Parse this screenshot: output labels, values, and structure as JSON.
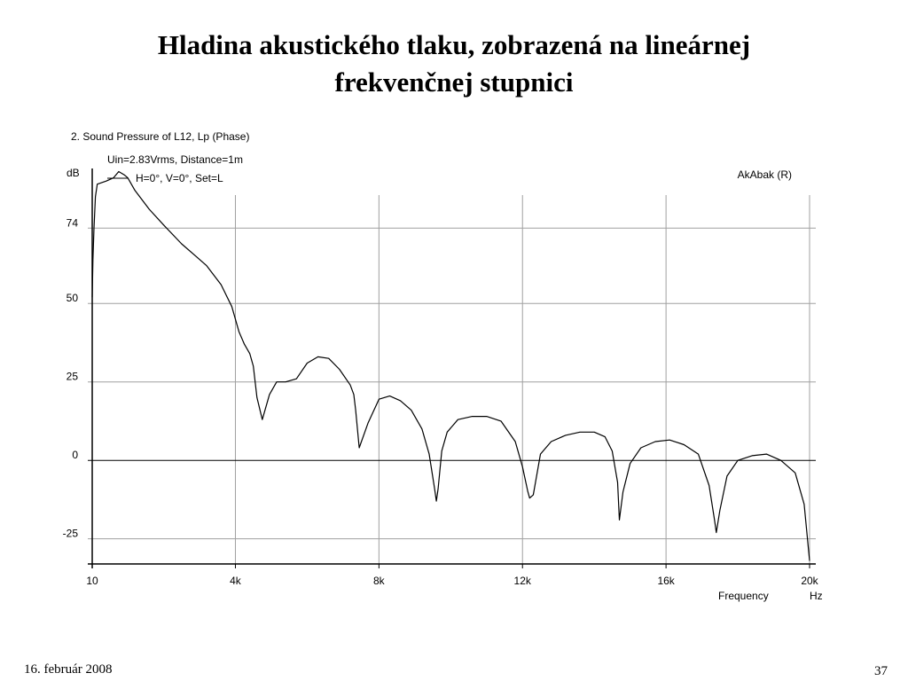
{
  "slide": {
    "title_line1": "Hladina akustického tlaku, zobrazená na lineárnej",
    "title_line2": "frekvenčnej stupnici",
    "footer_date": "16. február 2008",
    "page_number": "37"
  },
  "chart_data": {
    "type": "line",
    "title": "2. Sound Pressure of L12, Lp (Phase)",
    "conditions": "Uin=2.83Vrms, Distance=1m",
    "brand": "AkAbak (R)",
    "ylabel": "dB",
    "xlabel": "Frequency",
    "xunit": "Hz",
    "xlim": [
      10,
      20000
    ],
    "ylim": [
      -33,
      93
    ],
    "x_ticks": [
      {
        "value": 10,
        "label": "10"
      },
      {
        "value": 4000,
        "label": "4k"
      },
      {
        "value": 8000,
        "label": "8k"
      },
      {
        "value": 12000,
        "label": "12k"
      },
      {
        "value": 16000,
        "label": "16k"
      },
      {
        "value": 20000,
        "label": "20k"
      }
    ],
    "y_ticks": [
      {
        "value": 74,
        "label": "74"
      },
      {
        "value": 50,
        "label": "50"
      },
      {
        "value": 25,
        "label": "25"
      },
      {
        "value": 0,
        "label": "0"
      },
      {
        "value": -25,
        "label": "-25"
      }
    ],
    "grid": true,
    "colors": {
      "line": "#000000",
      "grid": "#a0a0a0"
    },
    "series": [
      {
        "name": "H=0°, V=0°, Set=L",
        "x": [
          10,
          30,
          60,
          100,
          150,
          400,
          600,
          750,
          900,
          1000,
          1200,
          1600,
          2000,
          2500,
          2900,
          3200,
          3600,
          3900,
          4100,
          4250,
          4400,
          4500,
          4600,
          4750,
          4950,
          5150,
          5400,
          5700,
          6000,
          6300,
          6600,
          6900,
          7200,
          7300,
          7350,
          7450,
          7700,
          8000,
          8300,
          8600,
          8900,
          9200,
          9400,
          9550,
          9600,
          9650,
          9750,
          9900,
          10200,
          10600,
          11000,
          11400,
          11800,
          12000,
          12150,
          12200,
          12300,
          12500,
          12800,
          13200,
          13600,
          14000,
          14300,
          14500,
          14650,
          14700,
          14800,
          15000,
          15300,
          15700,
          16100,
          16500,
          16900,
          17200,
          17350,
          17400,
          17500,
          17700,
          18000,
          18400,
          18800,
          19200,
          19600,
          19850,
          20000
        ],
        "y": [
          52,
          64,
          74,
          84,
          88,
          89,
          90,
          92,
          91,
          90,
          86,
          80,
          75,
          69,
          65,
          62,
          56,
          49,
          41,
          37,
          34,
          30,
          20,
          13,
          21,
          25,
          25,
          26,
          31,
          33,
          32.5,
          29,
          24,
          21,
          16,
          4,
          12,
          19.5,
          20.5,
          19,
          16,
          10,
          2,
          -9,
          -13,
          -9,
          3,
          9,
          13,
          14,
          14,
          12.5,
          6,
          -2,
          -10,
          -12,
          -11,
          2,
          6,
          8,
          9,
          9,
          7.5,
          3,
          -7,
          -19,
          -10,
          -1,
          4,
          6,
          6.5,
          5,
          2,
          -8,
          -19,
          -23,
          -16,
          -5,
          0,
          1.5,
          2,
          0,
          -4,
          -14,
          -32
        ]
      }
    ]
  }
}
